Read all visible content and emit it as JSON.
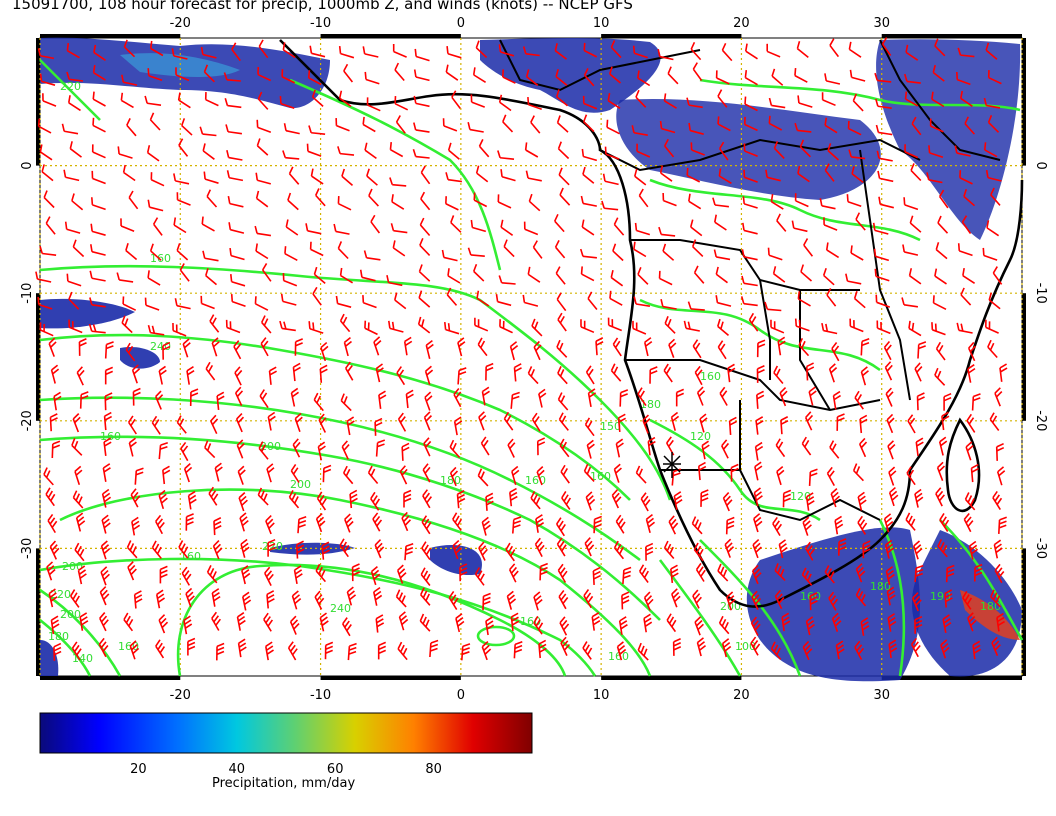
{
  "title": "15091700, 108 hour forecast for precip, 1000mb Z, and winds (knots) -- NCEP GFS",
  "map": {
    "lon_range": [
      -30,
      40
    ],
    "lat_range": [
      -40,
      10
    ],
    "lon_ticks": [
      "-20",
      "-10",
      "0",
      "10",
      "20",
      "30"
    ],
    "lat_ticks": [
      "0",
      "-10",
      "-20",
      "-30"
    ],
    "gridlines": "dotted",
    "colors": {
      "wind_barbs": "#ff0000",
      "height_contours": "#33ee33",
      "coastlines": "#000000",
      "grid": "#d4b400"
    }
  },
  "contour_labels": [
    "220",
    "160",
    "240",
    "160",
    "200",
    "220",
    "200",
    "180",
    "160",
    "200",
    "180",
    "160",
    "150",
    "160",
    "180",
    "160",
    "220",
    "160",
    "240",
    "200",
    "140",
    "160",
    "120",
    "160",
    "200",
    "120",
    "160",
    "180",
    "190",
    "180",
    "100"
  ],
  "colorbar": {
    "label": "Precipitation, mm/day",
    "ticks": [
      "20",
      "40",
      "60",
      "80"
    ],
    "range": [
      0,
      100
    ],
    "colors": [
      "#0a0a7a",
      "#0000ff",
      "#0070ff",
      "#00c8e0",
      "#60d070",
      "#d8d000",
      "#ff8000",
      "#e00000",
      "#800000"
    ]
  }
}
